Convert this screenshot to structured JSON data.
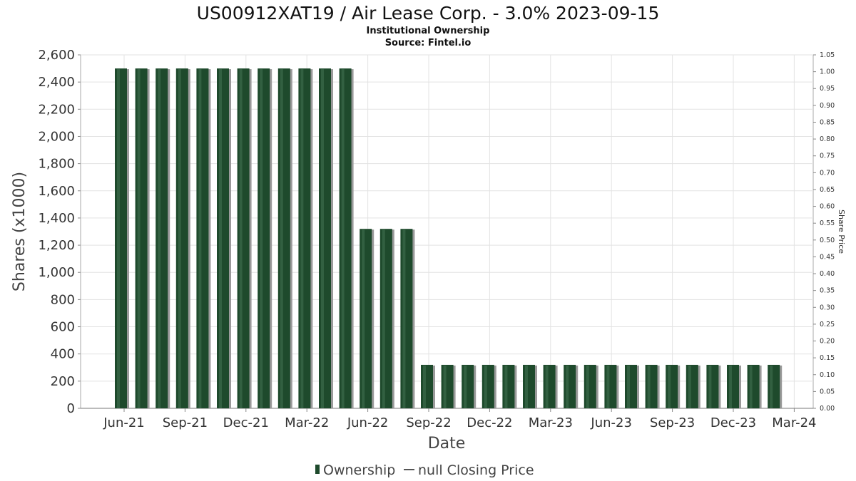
{
  "chart_data": {
    "type": "bar",
    "title": "US00912XAT19 / Air Lease Corp. - 3.0% 2023-09-15",
    "subtitle": "Institutional Ownership",
    "source": "Source: Fintel.io",
    "xlabel": "Date",
    "ylabel": "Shares (x1000)",
    "y2label": "Share Price",
    "ylim": [
      0,
      2600
    ],
    "y2lim": [
      0,
      1.05
    ],
    "grid": true,
    "legend_position": "bottom",
    "y_ticks": [
      "0",
      "200",
      "400",
      "600",
      "800",
      "1,000",
      "1,200",
      "1,400",
      "1,600",
      "1,800",
      "2,000",
      "2,200",
      "2,400",
      "2,600"
    ],
    "y2_ticks": [
      "0.00",
      "0.05",
      "0.10",
      "0.15",
      "0.20",
      "0.25",
      "0.30",
      "0.35",
      "0.40",
      "0.45",
      "0.50",
      "0.55",
      "0.60",
      "0.65",
      "0.70",
      "0.75",
      "0.80",
      "0.85",
      "0.90",
      "0.95",
      "1.00",
      "1.05"
    ],
    "x_ticks": [
      "Jun-21",
      "Sep-21",
      "Dec-21",
      "Mar-22",
      "Jun-22",
      "Sep-22",
      "Dec-22",
      "Mar-23",
      "Jun-23",
      "Sep-23",
      "Dec-23",
      "Mar-24"
    ],
    "series": [
      {
        "name": "Ownership",
        "color": "#1e4a2c",
        "values": [
          2500,
          2500,
          2500,
          2500,
          2500,
          2500,
          2500,
          2500,
          2500,
          2500,
          2500,
          2500,
          1320,
          1320,
          1320,
          320,
          320,
          320,
          320,
          320,
          320,
          320,
          320,
          320,
          320,
          320,
          320,
          320,
          320,
          320,
          320,
          320,
          320
        ]
      },
      {
        "name": "null Closing Price",
        "color": "#555555",
        "values": []
      }
    ]
  }
}
